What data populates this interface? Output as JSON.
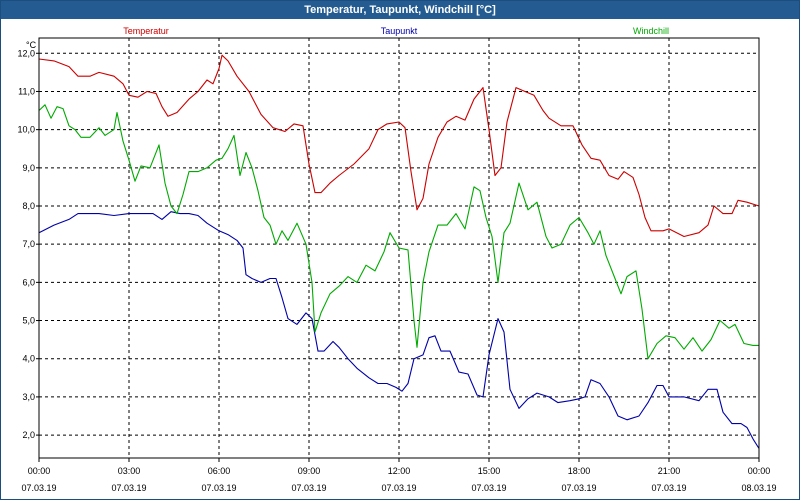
{
  "window": {
    "title": "Temperatur, Taupunkt, Windchill [°C]"
  },
  "chart_data": {
    "type": "line",
    "title": "Temperatur, Taupunkt, Windchill [°C]",
    "ylabel": "°C",
    "ylim": [
      1.4,
      12.4
    ],
    "yticks": [
      "2,0",
      "3,0",
      "4,0",
      "5,0",
      "6,0",
      "7,0",
      "8,0",
      "9,0",
      "10,0",
      "11,0",
      "12,0"
    ],
    "xlim": [
      0,
      24
    ],
    "xticks": [
      {
        "time": "00:00",
        "date": "07.03.19"
      },
      {
        "time": "03:00",
        "date": "07.03.19"
      },
      {
        "time": "06:00",
        "date": "07.03.19"
      },
      {
        "time": "09:00",
        "date": "07.03.19"
      },
      {
        "time": "12:00",
        "date": "07.03.19"
      },
      {
        "time": "15:00",
        "date": "07.03.19"
      },
      {
        "time": "18:00",
        "date": "07.03.19"
      },
      {
        "time": "21:00",
        "date": "07.03.19"
      },
      {
        "time": "00:00",
        "date": "08.03.19"
      }
    ],
    "grid": true,
    "series": [
      {
        "name": "Temperatur",
        "color": "#cc0000",
        "points": [
          [
            0,
            11.85
          ],
          [
            0.5,
            11.8
          ],
          [
            1,
            11.65
          ],
          [
            1.3,
            11.4
          ],
          [
            1.7,
            11.4
          ],
          [
            2,
            11.5
          ],
          [
            2.5,
            11.4
          ],
          [
            2.8,
            11.2
          ],
          [
            3,
            10.9
          ],
          [
            3.3,
            10.85
          ],
          [
            3.6,
            11.0
          ],
          [
            3.9,
            10.95
          ],
          [
            4.1,
            10.6
          ],
          [
            4.3,
            10.35
          ],
          [
            4.6,
            10.45
          ],
          [
            5,
            10.8
          ],
          [
            5.3,
            11.0
          ],
          [
            5.6,
            11.3
          ],
          [
            5.8,
            11.2
          ],
          [
            6.0,
            11.6
          ],
          [
            6.1,
            11.95
          ],
          [
            6.3,
            11.8
          ],
          [
            6.6,
            11.4
          ],
          [
            7,
            11.0
          ],
          [
            7.4,
            10.4
          ],
          [
            7.8,
            10.05
          ],
          [
            8.2,
            9.95
          ],
          [
            8.5,
            10.15
          ],
          [
            8.8,
            10.1
          ],
          [
            9,
            9.1
          ],
          [
            9.2,
            8.35
          ],
          [
            9.4,
            8.35
          ],
          [
            9.7,
            8.6
          ],
          [
            10,
            8.8
          ],
          [
            10.5,
            9.1
          ],
          [
            11,
            9.5
          ],
          [
            11.3,
            10.0
          ],
          [
            11.6,
            10.15
          ],
          [
            12,
            10.2
          ],
          [
            12.2,
            10.05
          ],
          [
            12.4,
            8.9
          ],
          [
            12.6,
            7.9
          ],
          [
            12.8,
            8.2
          ],
          [
            13,
            9.1
          ],
          [
            13.3,
            9.8
          ],
          [
            13.6,
            10.2
          ],
          [
            13.9,
            10.35
          ],
          [
            14.2,
            10.25
          ],
          [
            14.5,
            10.8
          ],
          [
            14.8,
            11.1
          ],
          [
            15,
            10.0
          ],
          [
            15.2,
            8.8
          ],
          [
            15.4,
            9.0
          ],
          [
            15.6,
            10.2
          ],
          [
            15.9,
            11.1
          ],
          [
            16.2,
            11.0
          ],
          [
            16.5,
            10.9
          ],
          [
            16.8,
            10.5
          ],
          [
            17,
            10.3
          ],
          [
            17.4,
            10.1
          ],
          [
            17.8,
            10.1
          ],
          [
            18.1,
            9.6
          ],
          [
            18.4,
            9.25
          ],
          [
            18.7,
            9.2
          ],
          [
            19,
            8.8
          ],
          [
            19.3,
            8.7
          ],
          [
            19.5,
            8.9
          ],
          [
            19.8,
            8.75
          ],
          [
            20,
            8.3
          ],
          [
            20.2,
            7.7
          ],
          [
            20.4,
            7.35
          ],
          [
            20.8,
            7.35
          ],
          [
            21,
            7.4
          ],
          [
            21.5,
            7.2
          ],
          [
            22,
            7.3
          ],
          [
            22.3,
            7.5
          ],
          [
            22.5,
            8.0
          ],
          [
            22.8,
            7.8
          ],
          [
            23.1,
            7.8
          ],
          [
            23.3,
            8.15
          ],
          [
            23.6,
            8.1
          ],
          [
            24,
            8.0
          ]
        ]
      },
      {
        "name": "Taupunkt",
        "color": "#0000aa",
        "points": [
          [
            0,
            7.3
          ],
          [
            0.5,
            7.5
          ],
          [
            1,
            7.65
          ],
          [
            1.3,
            7.8
          ],
          [
            2,
            7.8
          ],
          [
            2.5,
            7.75
          ],
          [
            3,
            7.8
          ],
          [
            3.5,
            7.8
          ],
          [
            3.8,
            7.8
          ],
          [
            4.1,
            7.65
          ],
          [
            4.4,
            7.85
          ],
          [
            4.7,
            7.8
          ],
          [
            5,
            7.8
          ],
          [
            5.3,
            7.75
          ],
          [
            5.6,
            7.55
          ],
          [
            6,
            7.35
          ],
          [
            6.3,
            7.25
          ],
          [
            6.6,
            7.1
          ],
          [
            6.8,
            6.9
          ],
          [
            6.9,
            6.2
          ],
          [
            7.1,
            6.1
          ],
          [
            7.4,
            6.0
          ],
          [
            7.7,
            6.1
          ],
          [
            7.9,
            6.1
          ],
          [
            8.1,
            5.6
          ],
          [
            8.3,
            5.05
          ],
          [
            8.6,
            4.9
          ],
          [
            8.9,
            5.2
          ],
          [
            9.1,
            5.05
          ],
          [
            9.3,
            4.2
          ],
          [
            9.5,
            4.2
          ],
          [
            9.8,
            4.45
          ],
          [
            10,
            4.3
          ],
          [
            10.3,
            4.0
          ],
          [
            10.6,
            3.75
          ],
          [
            11,
            3.5
          ],
          [
            11.3,
            3.35
          ],
          [
            11.6,
            3.35
          ],
          [
            11.9,
            3.25
          ],
          [
            12.1,
            3.15
          ],
          [
            12.3,
            3.35
          ],
          [
            12.5,
            4.0
          ],
          [
            12.8,
            4.1
          ],
          [
            13,
            4.55
          ],
          [
            13.2,
            4.6
          ],
          [
            13.4,
            4.2
          ],
          [
            13.7,
            4.2
          ],
          [
            14,
            3.65
          ],
          [
            14.3,
            3.6
          ],
          [
            14.6,
            3.05
          ],
          [
            14.8,
            3.0
          ],
          [
            15,
            4.1
          ],
          [
            15.3,
            5.05
          ],
          [
            15.5,
            4.7
          ],
          [
            15.7,
            3.2
          ],
          [
            16,
            2.7
          ],
          [
            16.3,
            2.95
          ],
          [
            16.6,
            3.1
          ],
          [
            17,
            3.0
          ],
          [
            17.3,
            2.85
          ],
          [
            17.7,
            2.9
          ],
          [
            18,
            2.95
          ],
          [
            18.2,
            3.0
          ],
          [
            18.4,
            3.45
          ],
          [
            18.7,
            3.35
          ],
          [
            19,
            3.0
          ],
          [
            19.3,
            2.5
          ],
          [
            19.6,
            2.4
          ],
          [
            20,
            2.5
          ],
          [
            20.3,
            2.85
          ],
          [
            20.6,
            3.3
          ],
          [
            20.8,
            3.3
          ],
          [
            21,
            3.0
          ],
          [
            21.5,
            3.0
          ],
          [
            22,
            2.9
          ],
          [
            22.3,
            3.2
          ],
          [
            22.6,
            3.2
          ],
          [
            22.8,
            2.6
          ],
          [
            23.1,
            2.3
          ],
          [
            23.4,
            2.3
          ],
          [
            23.6,
            2.2
          ],
          [
            23.8,
            1.9
          ],
          [
            24,
            1.65
          ]
        ]
      },
      {
        "name": "Windchill",
        "color": "#00aa00",
        "points": [
          [
            0,
            10.5
          ],
          [
            0.2,
            10.65
          ],
          [
            0.4,
            10.3
          ],
          [
            0.6,
            10.6
          ],
          [
            0.8,
            10.55
          ],
          [
            1,
            10.1
          ],
          [
            1.2,
            10.0
          ],
          [
            1.4,
            9.8
          ],
          [
            1.7,
            9.8
          ],
          [
            2,
            10.05
          ],
          [
            2.2,
            9.85
          ],
          [
            2.5,
            10.0
          ],
          [
            2.6,
            10.45
          ],
          [
            2.8,
            9.7
          ],
          [
            3,
            9.2
          ],
          [
            3.2,
            8.65
          ],
          [
            3.4,
            9.05
          ],
          [
            3.7,
            9.0
          ],
          [
            4,
            9.6
          ],
          [
            4.2,
            8.6
          ],
          [
            4.4,
            8.0
          ],
          [
            4.6,
            7.8
          ],
          [
            4.8,
            8.3
          ],
          [
            5,
            8.9
          ],
          [
            5.3,
            8.9
          ],
          [
            5.6,
            9.0
          ],
          [
            5.9,
            9.2
          ],
          [
            6.1,
            9.25
          ],
          [
            6.3,
            9.5
          ],
          [
            6.5,
            9.85
          ],
          [
            6.7,
            8.8
          ],
          [
            6.9,
            9.4
          ],
          [
            7.1,
            9.0
          ],
          [
            7.3,
            8.4
          ],
          [
            7.5,
            7.7
          ],
          [
            7.7,
            7.5
          ],
          [
            7.9,
            7.0
          ],
          [
            8.1,
            7.35
          ],
          [
            8.3,
            7.1
          ],
          [
            8.6,
            7.55
          ],
          [
            8.9,
            7.0
          ],
          [
            9.1,
            6.0
          ],
          [
            9.2,
            4.7
          ],
          [
            9.4,
            5.2
          ],
          [
            9.7,
            5.7
          ],
          [
            10,
            5.9
          ],
          [
            10.3,
            6.15
          ],
          [
            10.6,
            6.0
          ],
          [
            10.9,
            6.45
          ],
          [
            11.2,
            6.3
          ],
          [
            11.5,
            6.8
          ],
          [
            11.7,
            7.3
          ],
          [
            12,
            6.9
          ],
          [
            12.3,
            6.85
          ],
          [
            12.5,
            5.0
          ],
          [
            12.6,
            4.3
          ],
          [
            12.8,
            6.0
          ],
          [
            13,
            6.8
          ],
          [
            13.3,
            7.5
          ],
          [
            13.6,
            7.5
          ],
          [
            13.9,
            7.8
          ],
          [
            14.2,
            7.4
          ],
          [
            14.5,
            8.5
          ],
          [
            14.7,
            8.4
          ],
          [
            14.9,
            7.7
          ],
          [
            15.1,
            7.2
          ],
          [
            15.3,
            6.0
          ],
          [
            15.5,
            7.3
          ],
          [
            15.7,
            7.55
          ],
          [
            16,
            8.6
          ],
          [
            16.3,
            7.9
          ],
          [
            16.6,
            8.1
          ],
          [
            16.9,
            7.2
          ],
          [
            17.1,
            6.9
          ],
          [
            17.4,
            7.0
          ],
          [
            17.7,
            7.5
          ],
          [
            18,
            7.7
          ],
          [
            18.3,
            7.3
          ],
          [
            18.5,
            7.0
          ],
          [
            18.7,
            7.35
          ],
          [
            18.9,
            6.7
          ],
          [
            19.2,
            6.1
          ],
          [
            19.4,
            5.7
          ],
          [
            19.6,
            6.15
          ],
          [
            19.9,
            6.3
          ],
          [
            20.1,
            5.3
          ],
          [
            20.3,
            4.0
          ],
          [
            20.6,
            4.4
          ],
          [
            20.9,
            4.6
          ],
          [
            21.2,
            4.55
          ],
          [
            21.5,
            4.25
          ],
          [
            21.8,
            4.55
          ],
          [
            22.1,
            4.2
          ],
          [
            22.4,
            4.5
          ],
          [
            22.7,
            5.0
          ],
          [
            23,
            4.8
          ],
          [
            23.2,
            4.9
          ],
          [
            23.5,
            4.4
          ],
          [
            23.8,
            4.35
          ],
          [
            24,
            4.35
          ]
        ]
      }
    ]
  }
}
